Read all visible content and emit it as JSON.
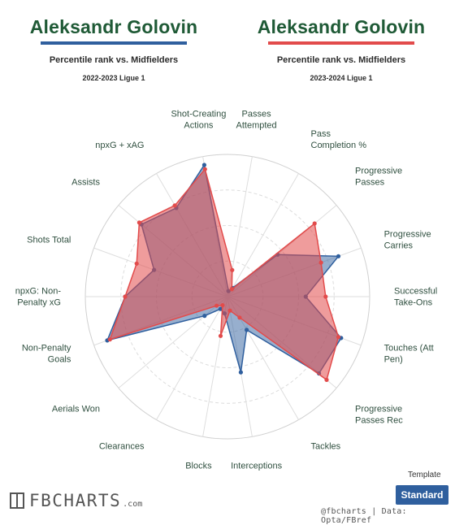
{
  "headers": [
    {
      "player": "Aleksandr Golovin",
      "subtitle": "Percentile rank vs. Midfielders",
      "season": "2022-2023 Ligue 1",
      "color": "#2f5f9e"
    },
    {
      "player": "Aleksandr Golovin",
      "subtitle": "Percentile rank vs. Midfielders",
      "season": "2023-2024 Ligue 1",
      "color": "#e24b4b"
    }
  ],
  "chart_data": {
    "type": "radar",
    "axes": [
      [
        "Passes",
        "Attempted"
      ],
      [
        "Pass",
        "Completion %"
      ],
      [
        "Progressive",
        "Passes"
      ],
      [
        "Progressive",
        "Carries"
      ],
      [
        "Successful",
        "Take-Ons"
      ],
      [
        "Touches (Att",
        "Pen)"
      ],
      [
        "Progressive",
        "Passes Rec"
      ],
      [
        "Tackles"
      ],
      [
        "Interceptions"
      ],
      [
        "Blocks"
      ],
      [
        "Clearances"
      ],
      [
        "Aerials Won"
      ],
      [
        "Non-Penalty",
        "Goals"
      ],
      [
        "npxG: Non-",
        "Penalty xG"
      ],
      [
        "Shots Total"
      ],
      [
        "Assists"
      ],
      [
        "npxG + xAG"
      ],
      [
        "Shot-Creating",
        "Actions"
      ]
    ],
    "rlim": [
      0,
      100
    ],
    "series": [
      {
        "season": "2022-2023 Ligue 1",
        "color": "#2f5f9e",
        "values": [
          4,
          7,
          46,
          83,
          55,
          85,
          84,
          27,
          54,
          12,
          10,
          21,
          90,
          72,
          55,
          79,
          72,
          94
        ]
      },
      {
        "season": "2023-2024 Ligue 1",
        "color": "#e24b4b",
        "values": [
          19,
          6,
          80,
          70,
          69,
          83,
          91,
          17,
          10,
          28,
          7,
          10,
          88,
          72,
          68,
          81,
          74,
          91
        ]
      }
    ],
    "grid": true
  },
  "footer": {
    "logo": "FBCHARTS",
    "logo_suffix": ".com",
    "credit": "@fbcharts | Data: Opta/FBref",
    "template_label": "Template",
    "template_button": "Standard"
  }
}
